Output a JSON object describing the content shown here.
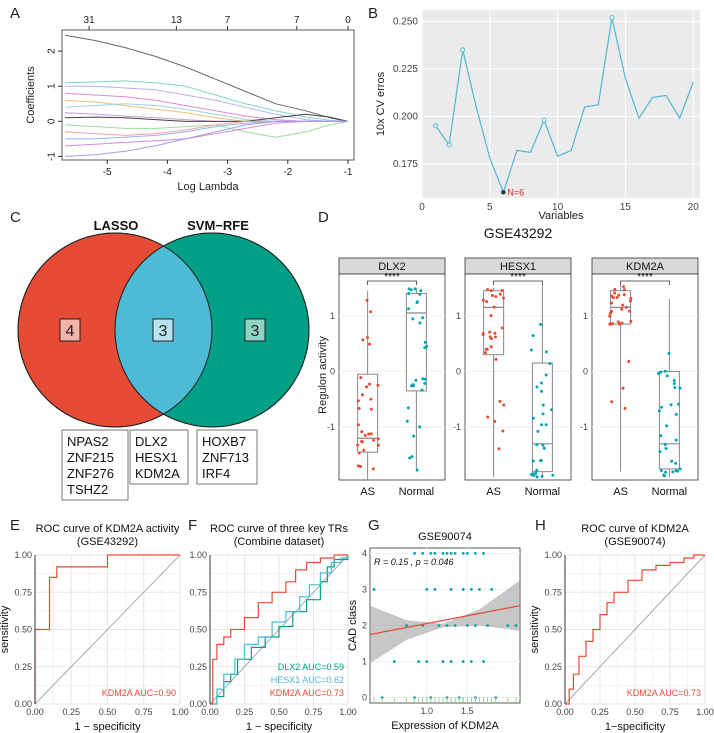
{
  "panel_letters": [
    "A",
    "B",
    "C",
    "D",
    "E",
    "F",
    "G",
    "H"
  ],
  "chart_data": [
    {
      "panel": "A",
      "type": "line",
      "xlabel": "Log Lambda",
      "ylabel": "Coefficients",
      "xlim": [
        -5.75,
        -0.9
      ],
      "ylim": [
        -1.1,
        2.6
      ],
      "xticks": [
        -5,
        -4,
        -3,
        -2,
        -1
      ],
      "yticks": [
        -1,
        0,
        1,
        2
      ],
      "top_ticks": [
        {
          "x": -5.3,
          "label": "31"
        },
        {
          "x": -3.85,
          "label": "13"
        },
        {
          "x": -3.0,
          "label": "7"
        },
        {
          "x": -1.85,
          "label": "7"
        },
        {
          "x": -1.0,
          "label": "0"
        }
      ],
      "x": [
        -5.7,
        -5.2,
        -4.7,
        -4.2,
        -3.7,
        -3.2,
        -2.7,
        -2.2,
        -1.7,
        -1.3,
        -1.0
      ],
      "series": [
        {
          "color": "#666666",
          "values": [
            2.45,
            2.3,
            2.1,
            1.85,
            1.55,
            1.2,
            0.85,
            0.5,
            0.3,
            0.1,
            0.0
          ]
        },
        {
          "color": "#7ed6c3",
          "values": [
            1.1,
            1.12,
            1.15,
            1.1,
            1.0,
            0.75,
            0.5,
            0.3,
            0.12,
            0.03,
            0.0
          ]
        },
        {
          "color": "#b0b6f0",
          "values": [
            1.0,
            1.0,
            0.95,
            0.9,
            0.75,
            0.6,
            0.4,
            0.2,
            0.05,
            0.0,
            0.0
          ]
        },
        {
          "color": "#e08cd3",
          "values": [
            0.8,
            0.75,
            0.7,
            0.6,
            0.45,
            0.3,
            0.15,
            0.05,
            0.0,
            0.0,
            0.0
          ]
        },
        {
          "color": "#f0c070",
          "values": [
            0.6,
            0.55,
            0.45,
            0.35,
            0.25,
            0.1,
            0.0,
            0.0,
            0.0,
            0.0,
            0.0
          ]
        },
        {
          "color": "#9fd2e8",
          "values": [
            0.4,
            0.45,
            0.5,
            0.45,
            0.35,
            0.2,
            0.05,
            0.0,
            0.0,
            0.0,
            0.0
          ]
        },
        {
          "color": "#c49cd9",
          "values": [
            0.25,
            0.2,
            0.15,
            0.1,
            0.05,
            0.0,
            0.0,
            0.0,
            0.0,
            0.0,
            0.0
          ]
        },
        {
          "color": "#444444",
          "values": [
            0.1,
            0.12,
            0.1,
            0.05,
            0.0,
            0.0,
            0.0,
            0.1,
            0.2,
            0.12,
            0.0
          ]
        },
        {
          "color": "#9fdc9f",
          "values": [
            -0.1,
            -0.15,
            -0.2,
            -0.2,
            -0.15,
            -0.1,
            -0.3,
            -0.45,
            -0.3,
            -0.1,
            0.0
          ]
        },
        {
          "color": "#f2a3a3",
          "values": [
            -0.3,
            -0.35,
            -0.4,
            -0.35,
            -0.25,
            -0.1,
            0.0,
            0.0,
            0.0,
            0.0,
            0.0
          ]
        },
        {
          "color": "#8fb8e8",
          "values": [
            -0.5,
            -0.5,
            -0.45,
            -0.4,
            -0.3,
            -0.15,
            -0.05,
            0.0,
            0.0,
            0.0,
            0.0
          ]
        },
        {
          "color": "#d98ad9",
          "values": [
            -0.7,
            -0.65,
            -0.6,
            -0.55,
            -0.5,
            -0.35,
            -0.2,
            -0.05,
            0.0,
            0.0,
            0.0
          ]
        },
        {
          "color": "#a0a0e0",
          "values": [
            -1.0,
            -0.95,
            -0.85,
            -0.7,
            -0.5,
            -0.3,
            -0.1,
            0.0,
            0.0,
            0.0,
            0.0
          ]
        }
      ]
    },
    {
      "panel": "B",
      "type": "line",
      "xlabel": "Variables",
      "ylabel": "10x CV erros",
      "xlim": [
        0,
        20.5
      ],
      "ylim": [
        0.157,
        0.256
      ],
      "xticks": [
        0,
        5,
        10,
        15,
        20
      ],
      "yticks": [
        0.175,
        0.2,
        0.225,
        0.25
      ],
      "ytick_labels": [
        "0.175",
        "0.200",
        "0.225",
        "0.250"
      ],
      "x": [
        1,
        2,
        3,
        4,
        5,
        6,
        7,
        8,
        9,
        10,
        11,
        12,
        13,
        14,
        15,
        16,
        17,
        18,
        19,
        20
      ],
      "values": [
        0.195,
        0.185,
        0.235,
        0.205,
        0.178,
        0.16,
        0.182,
        0.181,
        0.198,
        0.179,
        0.182,
        0.205,
        0.206,
        0.252,
        0.22,
        0.199,
        0.21,
        0.211,
        0.199,
        0.218
      ],
      "marked_points": [
        1,
        2,
        3,
        6,
        9,
        14
      ],
      "annotation": "N=6"
    },
    {
      "panel": "C",
      "type": "venn",
      "sets": [
        {
          "name": "LASSO",
          "color": "#e64b35",
          "only_count": "4",
          "genes": [
            "NPAS2",
            "ZNF215",
            "ZNF276",
            "TSHZ2"
          ]
        },
        {
          "name": "SVM−RFE",
          "color": "#00a087",
          "only_count": "3",
          "genes": [
            "HOXB7",
            "ZNF713",
            "IRF4"
          ]
        }
      ],
      "intersection": {
        "count": "3",
        "color": "#4dbbd5",
        "genes": [
          "DLX2",
          "HESX1",
          "KDM2A"
        ]
      }
    },
    {
      "panel": "D",
      "type": "box",
      "title": "GSE43292",
      "ylabel": "Regulon activity",
      "groups": [
        "AS",
        "Normal"
      ],
      "group_colors": [
        "#e64b35",
        "#00a5b5"
      ],
      "significance": "****",
      "facets": [
        {
          "name": "DLX2",
          "ylim": [
            -1.95,
            1.75
          ],
          "yticks": [
            -1,
            0,
            1
          ],
          "boxes": [
            {
              "q1": -1.45,
              "median": -1.2,
              "q3": -0.05,
              "lo": -1.95,
              "hi": 1.45
            },
            {
              "q1": -0.35,
              "median": 1.05,
              "q3": 1.4,
              "lo": -1.8,
              "hi": 1.5
            }
          ]
        },
        {
          "name": "HESX1",
          "ylim": [
            -1.95,
            1.75
          ],
          "yticks": [
            -1,
            0,
            1
          ],
          "boxes": [
            {
              "q1": 0.3,
              "median": 1.15,
              "q3": 1.45,
              "lo": -1.9,
              "hi": 1.5
            },
            {
              "q1": -1.8,
              "median": -1.3,
              "q3": 0.15,
              "lo": -1.9,
              "hi": 1.55
            }
          ]
        },
        {
          "name": "KDM2A",
          "ylim": [
            -1.95,
            1.75
          ],
          "yticks": [
            -1,
            0,
            1
          ],
          "boxes": [
            {
              "q1": 0.85,
              "median": 1.15,
              "q3": 1.45,
              "lo": -1.8,
              "hi": 1.55
            },
            {
              "q1": -1.75,
              "median": -1.3,
              "q3": 0.0,
              "lo": -1.9,
              "hi": 1.3
            }
          ]
        }
      ]
    },
    {
      "panel": "E",
      "type": "roc",
      "title": "ROC curve of KDM2A activity",
      "subtitle": "(GSE43292)",
      "xlabel": "1 − specificity",
      "ylabel": "sensitivity",
      "xticks": [
        0,
        0.25,
        0.5,
        0.75,
        1
      ],
      "xtick_labels": [
        "0.00",
        "0.25",
        "0.50",
        "0.75",
        "1.00"
      ],
      "yticks": [
        0,
        0.25,
        0.5,
        0.75,
        1
      ],
      "ytick_labels": [
        "0.00",
        "0.25",
        "0.50",
        "0.75",
        "1.00"
      ],
      "series": [
        {
          "name": "KDM2A AUC=0.90",
          "color": "#e64b35",
          "x": [
            0,
            0,
            0.1,
            0.1,
            0.15,
            0.15,
            0.5,
            0.5,
            1.0
          ],
          "y": [
            0,
            0.5,
            0.5,
            0.85,
            0.85,
            0.92,
            0.92,
            1.0,
            1.0
          ]
        }
      ]
    },
    {
      "panel": "F",
      "type": "roc",
      "title": "ROC curve of three key TRs",
      "subtitle": "(Combine dataset)",
      "xlabel": "1 − specificity",
      "ylabel": "",
      "xticks": [
        0,
        0.25,
        0.5,
        0.75,
        1
      ],
      "xtick_labels": [
        "0.00",
        "0.25",
        "0.50",
        "0.75",
        "1.00"
      ],
      "yticks": [
        0,
        0.25,
        0.5,
        0.75,
        1
      ],
      "ytick_labels": [
        "0.00",
        "0.25",
        "0.50",
        "0.75",
        "1.00"
      ],
      "series": [
        {
          "name": "DLX2 AUC=0.59",
          "color": "#00a087",
          "x": [
            0,
            0.05,
            0.1,
            0.15,
            0.2,
            0.3,
            0.4,
            0.5,
            0.6,
            0.7,
            0.8,
            0.85,
            0.9,
            1.0
          ],
          "y": [
            0,
            0.05,
            0.15,
            0.2,
            0.3,
            0.38,
            0.45,
            0.52,
            0.62,
            0.7,
            0.82,
            0.92,
            0.97,
            1.0
          ]
        },
        {
          "name": "HESX1 AUC=0.62",
          "color": "#4dbbd5",
          "x": [
            0,
            0.05,
            0.1,
            0.18,
            0.25,
            0.35,
            0.45,
            0.55,
            0.65,
            0.72,
            0.8,
            0.88,
            0.95,
            1.0
          ],
          "y": [
            0,
            0.1,
            0.2,
            0.3,
            0.4,
            0.45,
            0.55,
            0.62,
            0.72,
            0.8,
            0.88,
            0.95,
            0.98,
            1.0
          ]
        },
        {
          "name": "KDM2A AUC=0.73",
          "color": "#e64b35",
          "x": [
            0,
            0.02,
            0.05,
            0.1,
            0.15,
            0.25,
            0.35,
            0.45,
            0.55,
            0.62,
            0.7,
            0.8,
            0.9,
            1.0
          ],
          "y": [
            0,
            0.3,
            0.4,
            0.45,
            0.5,
            0.58,
            0.68,
            0.75,
            0.82,
            0.9,
            0.95,
            0.98,
            1.0,
            1.0
          ]
        }
      ]
    },
    {
      "panel": "G",
      "type": "scatter",
      "title": "GSE90074",
      "xlabel": "Expression of KDM2A",
      "ylabel": "CAD class",
      "xlim": [
        0.3,
        2.15
      ],
      "ylim": [
        -0.15,
        4.15
      ],
      "xticks": [
        1.0,
        1.5
      ],
      "xtick_labels": [
        "1.0",
        "1.5"
      ],
      "yticks": [
        0,
        1,
        2,
        3,
        4
      ],
      "stat": "R = 0.15 , p = 0.046",
      "fit": {
        "x": [
          0.3,
          2.15
        ],
        "y": [
          1.75,
          2.55
        ]
      },
      "band": {
        "x": [
          0.3,
          0.75,
          1.2,
          1.65,
          2.15
        ],
        "lo": [
          0.95,
          1.6,
          1.95,
          2.0,
          1.85
        ],
        "hi": [
          2.55,
          2.15,
          2.05,
          2.45,
          3.25
        ]
      },
      "points": [
        [
          0.95,
          4
        ],
        [
          1.2,
          4
        ],
        [
          1.35,
          4
        ],
        [
          1.5,
          4
        ],
        [
          1.6,
          4
        ],
        [
          1.05,
          4
        ],
        [
          1.1,
          4
        ],
        [
          1.7,
          4
        ],
        [
          1.3,
          4
        ],
        [
          0.85,
          4
        ],
        [
          1.45,
          4
        ],
        [
          1.25,
          4
        ],
        [
          0.35,
          3
        ],
        [
          1.1,
          3
        ],
        [
          1.3,
          3
        ],
        [
          1.55,
          3
        ],
        [
          1.65,
          3
        ],
        [
          1.8,
          3
        ],
        [
          1.0,
          3
        ],
        [
          1.45,
          3
        ],
        [
          0.75,
          2
        ],
        [
          0.95,
          2
        ],
        [
          1.15,
          2
        ],
        [
          1.35,
          2
        ],
        [
          1.5,
          2
        ],
        [
          1.6,
          2
        ],
        [
          1.75,
          2
        ],
        [
          2.0,
          2
        ],
        [
          2.1,
          2
        ],
        [
          1.25,
          2
        ],
        [
          0.6,
          1
        ],
        [
          0.9,
          1
        ],
        [
          1.0,
          1
        ],
        [
          1.2,
          1
        ],
        [
          1.45,
          1
        ],
        [
          1.55,
          1
        ],
        [
          1.7,
          1
        ],
        [
          1.3,
          1
        ],
        [
          0.45,
          0
        ],
        [
          0.85,
          0
        ],
        [
          1.05,
          0
        ],
        [
          1.25,
          0
        ],
        [
          1.4,
          0
        ],
        [
          1.6,
          0
        ],
        [
          1.85,
          0
        ]
      ]
    },
    {
      "panel": "H",
      "type": "roc",
      "title": "ROC curve of KDM2A",
      "subtitle": "(GSE90074)",
      "xlabel": "1−specificity",
      "ylabel": "sensitivity",
      "xticks": [
        0,
        0.25,
        0.5,
        0.75,
        1
      ],
      "xtick_labels": [
        "0.00",
        "0.25",
        "0.50",
        "0.75",
        "1.00"
      ],
      "yticks": [
        0,
        0.25,
        0.5,
        0.75,
        1
      ],
      "ytick_labels": [
        "0.00",
        "0.25",
        "0.50",
        "0.75",
        "1.00"
      ],
      "series": [
        {
          "name": "KDM2A AUC=0.73",
          "color": "#e64b35",
          "x": [
            0,
            0.03,
            0.06,
            0.1,
            0.15,
            0.2,
            0.25,
            0.3,
            0.35,
            0.45,
            0.55,
            0.65,
            0.75,
            0.85,
            0.92,
            1.0
          ],
          "y": [
            0,
            0.1,
            0.2,
            0.32,
            0.42,
            0.5,
            0.6,
            0.68,
            0.75,
            0.83,
            0.9,
            0.93,
            0.95,
            0.98,
            1.0,
            1.0
          ]
        }
      ]
    }
  ]
}
